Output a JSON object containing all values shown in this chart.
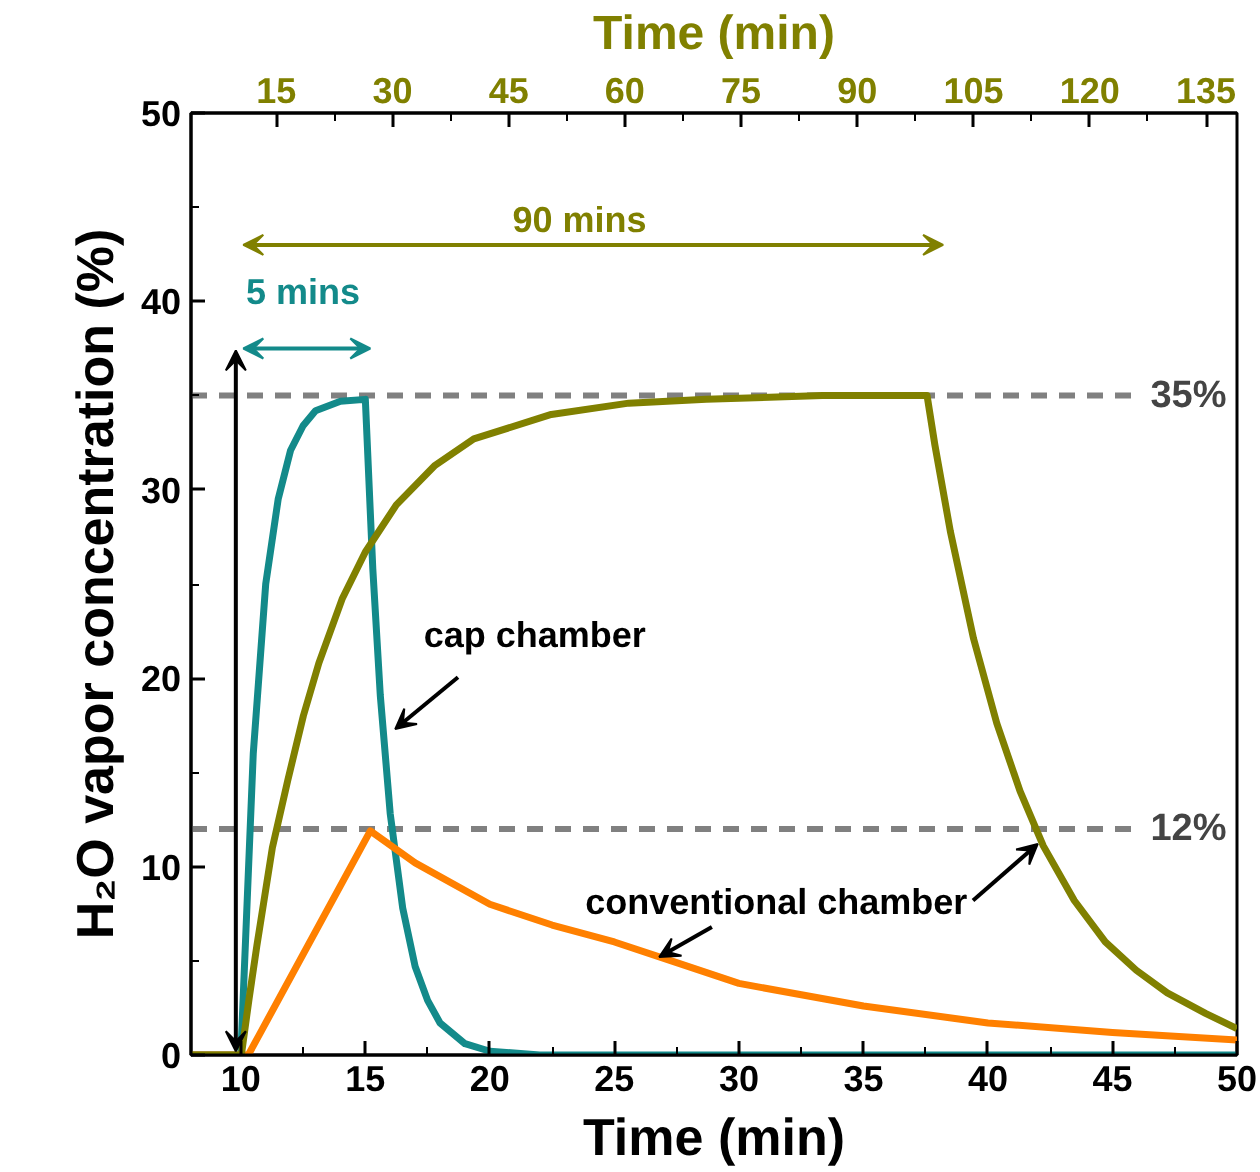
{
  "chart_data": {
    "type": "line",
    "xlabel": "Time (min)",
    "ylabel": "H₂O vapor concentration (%)",
    "x2label": "Time (min)",
    "xlim": [
      8,
      50
    ],
    "xticks": [
      10,
      15,
      20,
      25,
      30,
      35,
      40,
      45,
      50
    ],
    "x2lim": [
      4,
      139
    ],
    "x2ticks": [
      15,
      30,
      45,
      60,
      75,
      90,
      105,
      120,
      135
    ],
    "ylim": [
      0,
      50
    ],
    "yticks": [
      0,
      10,
      20,
      30,
      40,
      50
    ],
    "grid": false,
    "marker": "none",
    "line_style": "solid",
    "series": [
      {
        "color": "#138a8a",
        "x": [
          8,
          10,
          10.5,
          11,
          11.5,
          12,
          12.5,
          13,
          14,
          15,
          15.3,
          15.6,
          16,
          16.5,
          17,
          17.5,
          18,
          19,
          20,
          22,
          50
        ],
        "values": [
          0,
          0,
          16,
          25,
          29.5,
          32.1,
          33.4,
          34.2,
          34.7,
          34.8,
          25.8,
          19.1,
          12.8,
          7.8,
          4.7,
          2.9,
          1.7,
          0.6,
          0.2,
          0,
          0
        ]
      },
      {
        "color": "#ff8000",
        "x": [
          8,
          10.3,
          15.2,
          17,
          20,
          22.5,
          25,
          27.5,
          30,
          35,
          40,
          45,
          50
        ],
        "values": [
          0,
          0,
          11.9,
          10.2,
          8.0,
          6.9,
          6.0,
          4.9,
          3.8,
          2.6,
          1.7,
          1.2,
          0.8
        ]
      },
      {
        "color": "#808000",
        "axis": "x2",
        "x": [
          4,
          10.5,
          11.5,
          12.5,
          14.5,
          16.5,
          18.5,
          20.5,
          23.5,
          26.5,
          30.5,
          35.5,
          40.5,
          50.5,
          60.5,
          70.5,
          85.5,
          99,
          100,
          102,
          105,
          108,
          111,
          114,
          118,
          122,
          126,
          130,
          135,
          139
        ],
        "values": [
          0,
          0,
          3.0,
          5.8,
          11.0,
          14.6,
          18.0,
          20.8,
          24.2,
          26.7,
          29.2,
          31.3,
          32.7,
          34.0,
          34.6,
          34.8,
          35.0,
          35.0,
          32.4,
          27.8,
          22.1,
          17.6,
          14.0,
          11.1,
          8.2,
          6.0,
          4.5,
          3.3,
          2.2,
          1.4
        ]
      }
    ],
    "ref_lines": [
      {
        "axis": "y",
        "value": 35,
        "label": "35%",
        "color": "#808080",
        "line_style": "dashed"
      },
      {
        "axis": "y",
        "value": 12,
        "label": "12%",
        "color": "#808080",
        "line_style": "dashed"
      }
    ],
    "annotations": [
      "90 mins",
      "5 mins",
      {
        "text": "cap chamber",
        "x": 16.2,
        "y": 17.3
      },
      {
        "text": "conventional chamber",
        "x": 26.8,
        "y": 5.2
      }
    ]
  }
}
